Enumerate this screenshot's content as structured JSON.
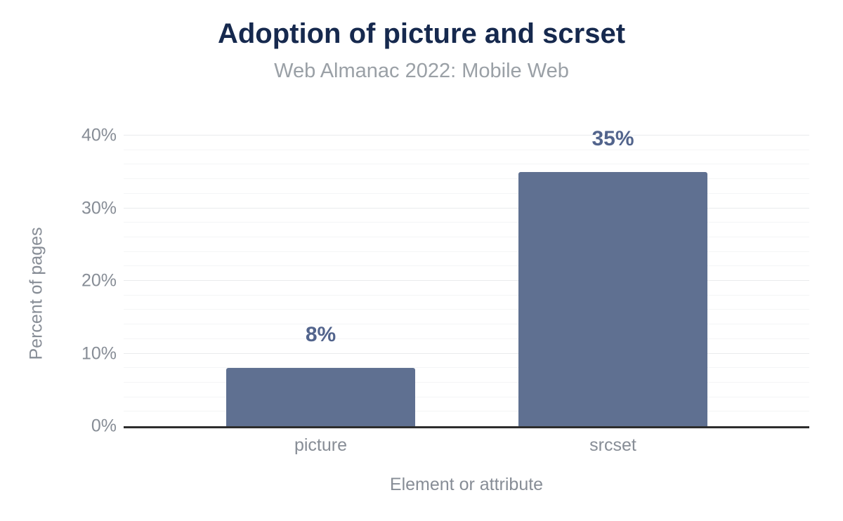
{
  "chart_data": {
    "type": "bar",
    "title": "Adoption of picture and scrset",
    "subtitle": "Web Almanac 2022: Mobile Web",
    "xlabel": "Element or attribute",
    "ylabel": "Percent of pages",
    "categories": [
      "picture",
      "srcset"
    ],
    "values": [
      8,
      35
    ],
    "value_labels": [
      "8%",
      "35%"
    ],
    "ylim": [
      0,
      40
    ],
    "yticks": [
      0,
      10,
      20,
      30,
      40
    ],
    "ytick_labels": [
      "0%",
      "10%",
      "20%",
      "30%",
      "40%"
    ],
    "minor_grid_step": 2,
    "grid": "horizontal",
    "legend_position": "none",
    "colors": {
      "bar": "#5f7091",
      "value_label": "#52648c",
      "title": "#16294e",
      "subtitle": "#9aa0a6",
      "axis_text": "#878d96",
      "axis_line": "#2d2d2d",
      "major_gridline": "#e9ebed",
      "minor_gridline": "#f4f5f6",
      "background": "#ffffff"
    }
  }
}
